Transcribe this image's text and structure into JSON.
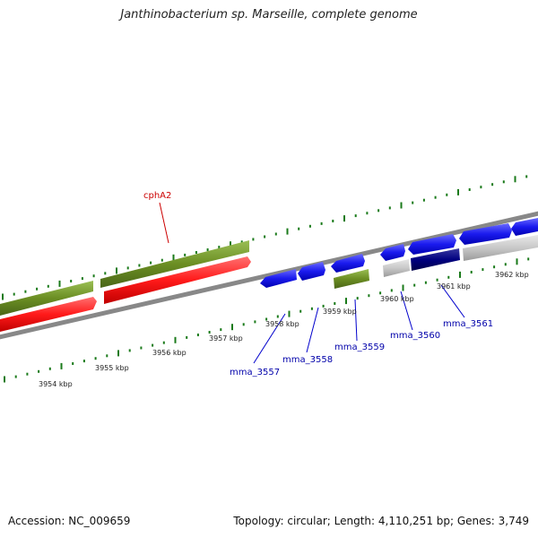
{
  "title": "Janthinobacterium sp. Marseille, complete genome",
  "footer": {
    "accession": "Accession: NC_009659",
    "summary": "Topology: circular; Length: 4,110,251 bp; Genes: 3,749"
  },
  "scale_labels": [
    "3954 kbp",
    "3955 kbp",
    "3956 kbp",
    "3957 kbp",
    "3958 kbp",
    "3959 kbp",
    "3960 kbp",
    "3961 kbp",
    "3962 kbp"
  ],
  "gene_labels": [
    {
      "name": "cphA2",
      "color": "#cc0000"
    },
    {
      "name": "mma_3557",
      "color": "#0000aa"
    },
    {
      "name": "mma_3558",
      "color": "#0000aa"
    },
    {
      "name": "mma_3559",
      "color": "#0000aa"
    },
    {
      "name": "mma_3560",
      "color": "#0000aa"
    },
    {
      "name": "mma_3561",
      "color": "#0000aa"
    }
  ],
  "colors": {
    "backbone": "#888888",
    "olive_feature": "#6b8e23",
    "red_feature": "#ff1a1a",
    "blue_feature": "#1a1aee",
    "navy_feature": "#000080",
    "gray_feature": "#c8c8c8",
    "tick": "#1a7a1a"
  }
}
